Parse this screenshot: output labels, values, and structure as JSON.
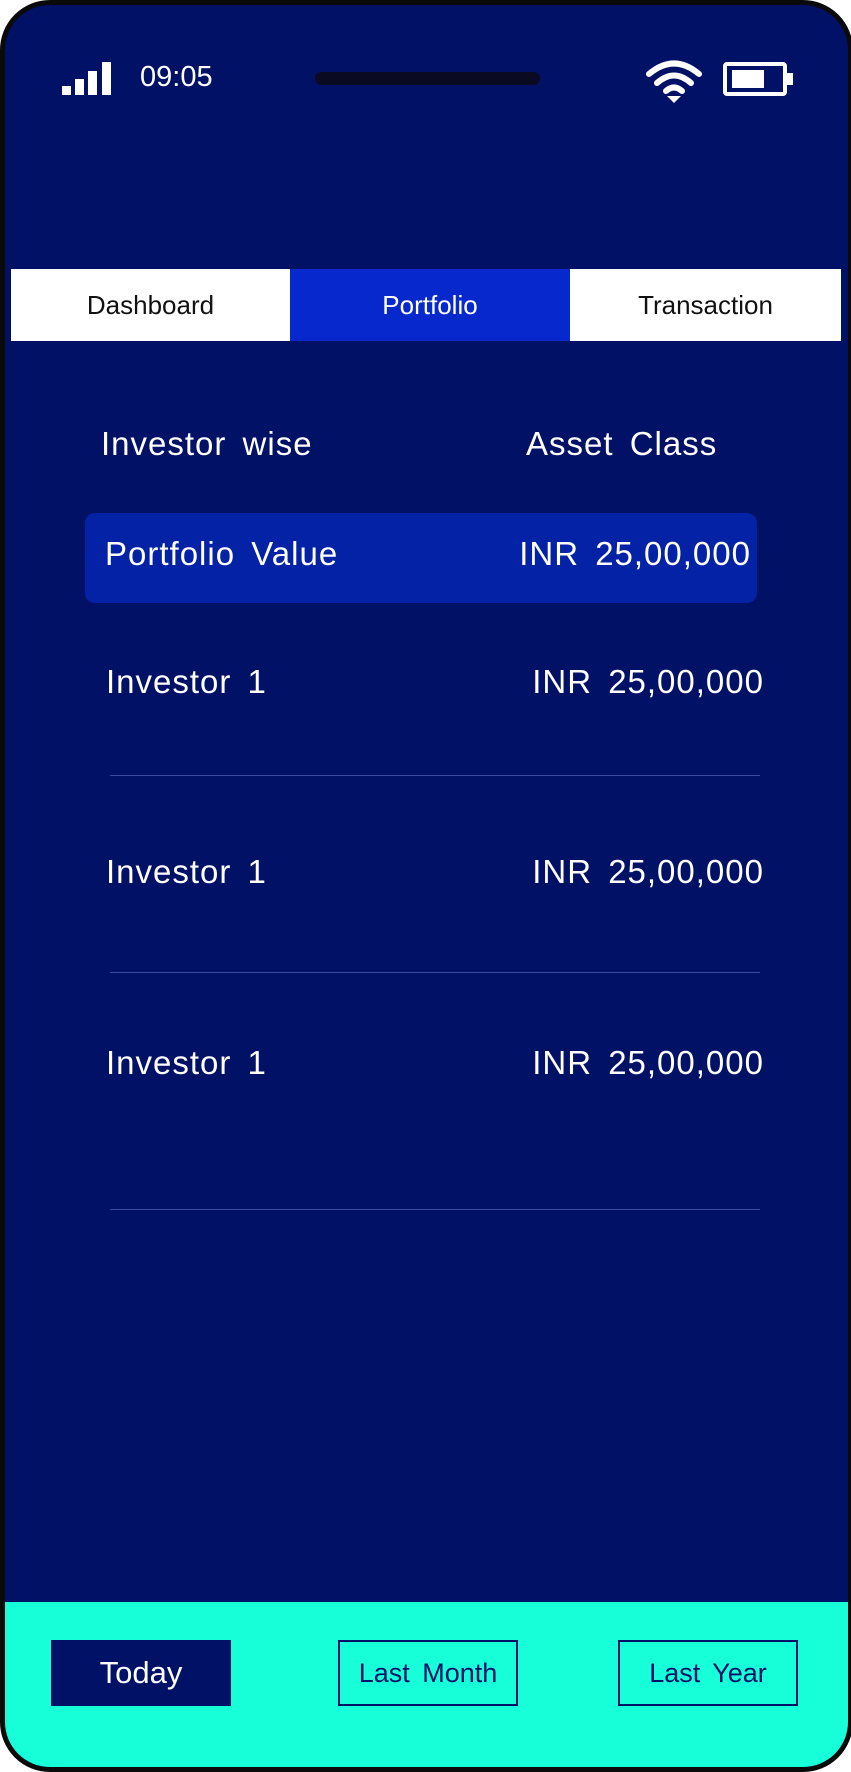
{
  "status_bar": {
    "time": "09:05",
    "signal_icon": "signal-bars-icon",
    "wifi_icon": "wifi-icon",
    "battery_icon": "battery-icon"
  },
  "tabs": [
    {
      "label": "Dashboard",
      "active": false
    },
    {
      "label": "Portfolio",
      "active": true
    },
    {
      "label": "Transaction",
      "active": false
    }
  ],
  "sub_tabs": {
    "investor_wise": "Investor  wise",
    "asset_class": "Asset  Class"
  },
  "summary": {
    "label": "Portfolio  Value",
    "value": "INR  25,00,000"
  },
  "investors": [
    {
      "name": "Investor  1",
      "value": "INR  25,00,000"
    },
    {
      "name": "Investor  1",
      "value": "INR  25,00,000"
    },
    {
      "name": "Investor  1",
      "value": "INR  25,00,000"
    }
  ],
  "filters": {
    "today": "Today",
    "last_month": "Last  Month",
    "last_year": "Last  Year",
    "selected": "today"
  },
  "colors": {
    "background": "#001166",
    "tab_active": "#0628cc",
    "summary_bg": "#0322a5",
    "bottom_bar": "#17ffd8"
  }
}
